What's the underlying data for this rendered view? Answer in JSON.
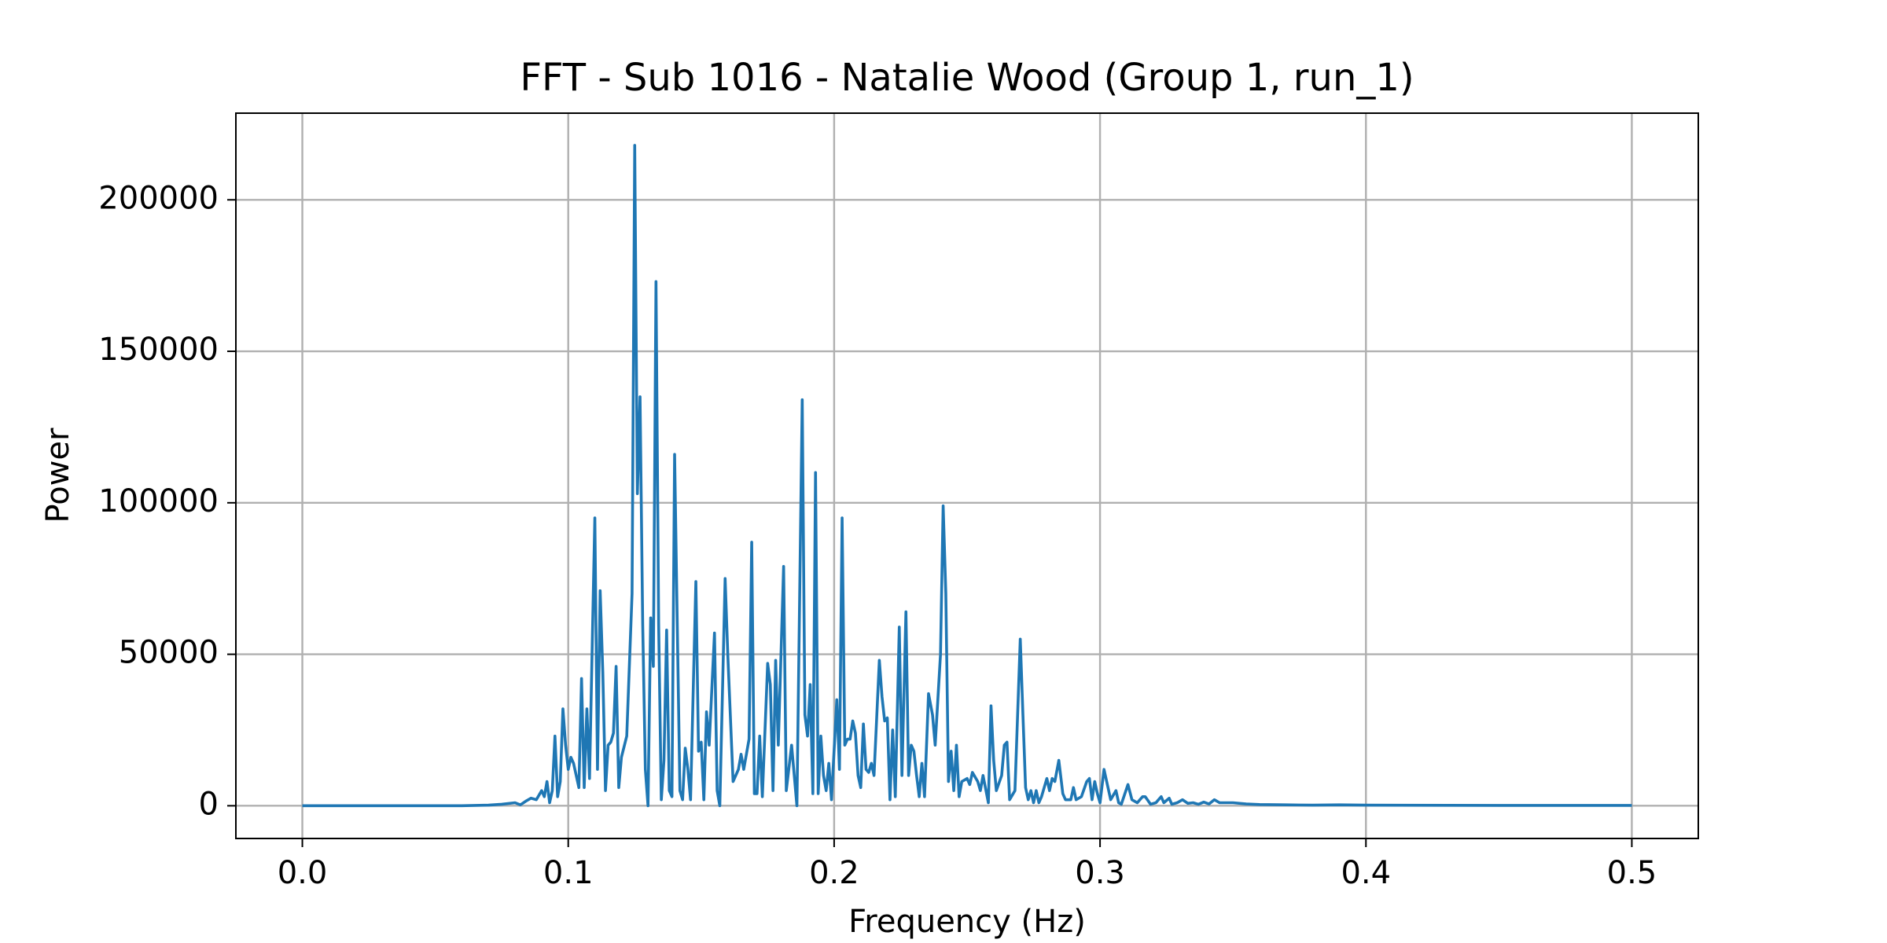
{
  "chart_data": {
    "type": "line",
    "title": "FFT - Sub 1016 - Natalie Wood (Group 1, run_1)",
    "xlabel": "Frequency (Hz)",
    "ylabel": "Power",
    "xlim": [
      -0.025,
      0.525
    ],
    "ylim": [
      -10800,
      228600
    ],
    "xticks": [
      {
        "value": 0,
        "label": "0.0"
      },
      0.1,
      0.2,
      0.3,
      0.4,
      0.5
    ],
    "yticks": [
      0,
      50000,
      100000,
      150000,
      200000
    ],
    "grid": true,
    "x": [
      0,
      0.02,
      0.04,
      0.06,
      0.07,
      0.075,
      0.08,
      0.082,
      0.084,
      0.086,
      0.088,
      0.09,
      0.091,
      0.092,
      0.093,
      0.094,
      0.095,
      0.096,
      0.097,
      0.098,
      0.099,
      0.1,
      0.101,
      0.102,
      0.104,
      0.105,
      0.106,
      0.107,
      0.108,
      0.11,
      0.111,
      0.112,
      0.113,
      0.114,
      0.115,
      0.116,
      0.117,
      0.118,
      0.119,
      0.12,
      0.122,
      0.124,
      0.125,
      0.126,
      0.127,
      0.128,
      0.129,
      0.13,
      0.131,
      0.132,
      0.133,
      0.134,
      0.135,
      0.136,
      0.137,
      0.138,
      0.139,
      0.14,
      0.141,
      0.142,
      0.143,
      0.144,
      0.145,
      0.146,
      0.148,
      0.149,
      0.15,
      0.151,
      0.152,
      0.153,
      0.155,
      0.156,
      0.157,
      0.159,
      0.16,
      0.162,
      0.164,
      0.165,
      0.166,
      0.168,
      0.169,
      0.17,
      0.171,
      0.172,
      0.173,
      0.175,
      0.176,
      0.177,
      0.178,
      0.179,
      0.181,
      0.182,
      0.184,
      0.186,
      0.188,
      0.189,
      0.19,
      0.191,
      0.192,
      0.193,
      0.194,
      0.195,
      0.196,
      0.197,
      0.198,
      0.199,
      0.201,
      0.202,
      0.203,
      0.204,
      0.205,
      0.206,
      0.207,
      0.208,
      0.209,
      0.21,
      0.211,
      0.212,
      0.213,
      0.214,
      0.215,
      0.217,
      0.218,
      0.219,
      0.22,
      0.221,
      0.222,
      0.223,
      0.2245,
      0.2255,
      0.227,
      0.228,
      0.229,
      0.23,
      0.231,
      0.232,
      0.233,
      0.234,
      0.2355,
      0.237,
      0.238,
      0.24,
      0.241,
      0.242,
      0.243,
      0.244,
      0.245,
      0.246,
      0.247,
      0.248,
      0.25,
      0.251,
      0.252,
      0.254,
      0.255,
      0.256,
      0.258,
      0.259,
      0.26,
      0.261,
      0.263,
      0.264,
      0.265,
      0.266,
      0.268,
      0.27,
      0.271,
      0.272,
      0.273,
      0.274,
      0.275,
      0.276,
      0.277,
      0.278,
      0.28,
      0.281,
      0.282,
      0.283,
      0.2845,
      0.286,
      0.287,
      0.289,
      0.29,
      0.291,
      0.293,
      0.295,
      0.296,
      0.297,
      0.298,
      0.299,
      0.3,
      0.3015,
      0.303,
      0.304,
      0.306,
      0.307,
      0.308,
      0.3105,
      0.312,
      0.314,
      0.316,
      0.317,
      0.319,
      0.321,
      0.323,
      0.324,
      0.326,
      0.327,
      0.329,
      0.331,
      0.333,
      0.335,
      0.337,
      0.339,
      0.341,
      0.343,
      0.345,
      0.35,
      0.355,
      0.36,
      0.37,
      0.38,
      0.39,
      0.4,
      0.45,
      0.5
    ],
    "series": [
      {
        "name": "Power",
        "color": "#1f77b4",
        "values": [
          0,
          0,
          0,
          0,
          200,
          500,
          1000,
          300,
          1500,
          2500,
          2000,
          5000,
          3000,
          8000,
          1000,
          5000,
          23000,
          3000,
          8000,
          32000,
          20000,
          12000,
          16000,
          14000,
          6000,
          42000,
          6000,
          32000,
          9000,
          95000,
          12000,
          71000,
          44000,
          5000,
          20000,
          21000,
          24000,
          46000,
          6000,
          16000,
          23000,
          70000,
          218000,
          103000,
          135000,
          60000,
          12000,
          0,
          62000,
          46000,
          173000,
          60000,
          2000,
          15000,
          58000,
          5000,
          3000,
          116000,
          60000,
          5000,
          2000,
          19000,
          12000,
          2000,
          74000,
          18000,
          21000,
          2000,
          31000,
          20000,
          57000,
          5000,
          0,
          75000,
          50000,
          8000,
          12000,
          17000,
          12000,
          22000,
          87000,
          4000,
          4000,
          23000,
          3000,
          47000,
          40000,
          5000,
          48000,
          20000,
          79000,
          5000,
          20000,
          0,
          134000,
          30000,
          23000,
          40000,
          4000,
          110000,
          4000,
          23000,
          10000,
          5000,
          14000,
          2000,
          35000,
          12000,
          95000,
          20000,
          22000,
          22000,
          28000,
          24000,
          10000,
          6000,
          27000,
          12000,
          11000,
          14000,
          10000,
          48000,
          36000,
          28000,
          29000,
          2000,
          25000,
          3000,
          59000,
          10000,
          64000,
          10000,
          20000,
          18000,
          10000,
          3000,
          14000,
          3000,
          37000,
          30000,
          20000,
          50000,
          99000,
          70000,
          8000,
          18000,
          5000,
          20000,
          3000,
          8000,
          9000,
          7000,
          11000,
          8000,
          5000,
          10000,
          1000,
          33000,
          15000,
          5000,
          10000,
          20000,
          21000,
          2000,
          5000,
          55000,
          30000,
          6000,
          2000,
          5000,
          1000,
          5000,
          1000,
          3000,
          9000,
          5000,
          9000,
          8000,
          15000,
          4000,
          2000,
          2000,
          6000,
          2000,
          3000,
          8000,
          9000,
          2000,
          8000,
          4000,
          1000,
          12000,
          6000,
          2000,
          5000,
          1000,
          500,
          7000,
          2000,
          1000,
          3000,
          3000,
          500,
          1000,
          3000,
          1000,
          2500,
          500,
          1000,
          2000,
          800,
          1000,
          500,
          1200,
          600,
          2000,
          1000,
          1000,
          600,
          400,
          300,
          200,
          300,
          200,
          100,
          100
        ]
      }
    ]
  }
}
